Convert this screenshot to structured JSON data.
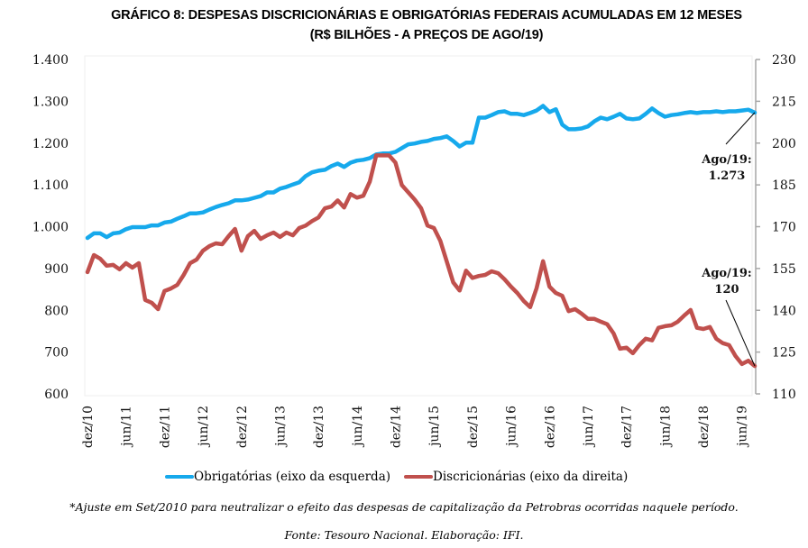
{
  "header": {
    "title_line1": "GRÁFICO 8: DESPESAS DISCRICIONÁRIAS E OBRIGATÓRIAS FEDERAIS ACUMULADAS EM 12 MESES",
    "title_line2": "(R$ BILHÕES - A PREÇOS DE AGO/19)"
  },
  "footer": {
    "note": "*Ajuste em Set/2010 para neutralizar o efeito das despesas de capitalização da Petrobras ocorridas naquele período.",
    "source": "Fonte: Tesouro Nacional. Elaboração: IFI."
  },
  "chart_data": {
    "type": "line",
    "title": "GRÁFICO 8: DESPESAS DISCRICIONÁRIAS E OBRIGATÓRIAS FEDERAIS ACUMULADAS EM 12 MESES (R$ BILHÕES - A PREÇOS DE AGO/19)",
    "x_start": "dez/10",
    "x_end": "ago/19",
    "x_tick_labels": [
      "dez/10",
      "jun/11",
      "dez/11",
      "jun/12",
      "dez/12",
      "jun/13",
      "dez/13",
      "jun/14",
      "dez/14",
      "jun/15",
      "dez/15",
      "jun/16",
      "dez/16",
      "jun/17",
      "dez/17",
      "jun/18",
      "dez/18",
      "jun/19"
    ],
    "x_tick_month_index": [
      0,
      6,
      12,
      18,
      24,
      30,
      36,
      42,
      48,
      54,
      60,
      66,
      72,
      78,
      84,
      90,
      96,
      102
    ],
    "grid": false,
    "legend_position": "bottom",
    "y_left": {
      "label": "",
      "ylim": [
        600,
        1400
      ],
      "ticks": [
        600,
        700,
        800,
        900,
        1000,
        1100,
        1200,
        1300,
        1400
      ],
      "tick_labels": [
        "600",
        "700",
        "800",
        "900",
        "1.000",
        "1.100",
        "1.200",
        "1.300",
        "1.400"
      ]
    },
    "y_right": {
      "label": "",
      "ylim": [
        110,
        230
      ],
      "ticks": [
        110,
        125,
        140,
        155,
        170,
        185,
        200,
        215,
        230
      ],
      "tick_labels": [
        "110",
        "125",
        "140",
        "155",
        "170",
        "185",
        "200",
        "215",
        "230"
      ]
    },
    "series": [
      {
        "name": "Obrigatórias (eixo da esquerda)",
        "axis": "left",
        "color": "#16a9ec",
        "values": [
          973,
          984,
          984,
          975,
          984,
          986,
          994,
          999,
          999,
          999,
          1003,
          1003,
          1010,
          1012,
          1019,
          1025,
          1032,
          1032,
          1034,
          1041,
          1047,
          1052,
          1056,
          1063,
          1063,
          1065,
          1069,
          1073,
          1082,
          1082,
          1091,
          1095,
          1101,
          1106,
          1121,
          1130,
          1134,
          1136,
          1145,
          1151,
          1143,
          1153,
          1158,
          1160,
          1164,
          1173,
          1175,
          1175,
          1179,
          1188,
          1197,
          1199,
          1203,
          1205,
          1210,
          1212,
          1216,
          1205,
          1192,
          1201,
          1201,
          1261,
          1261,
          1267,
          1274,
          1276,
          1270,
          1270,
          1267,
          1272,
          1278,
          1289,
          1274,
          1281,
          1244,
          1233,
          1233,
          1235,
          1240,
          1252,
          1261,
          1257,
          1263,
          1270,
          1259,
          1257,
          1259,
          1270,
          1283,
          1272,
          1263,
          1267,
          1269,
          1272,
          1274,
          1272,
          1274,
          1274,
          1276,
          1274,
          1276,
          1276,
          1278,
          1280,
          1273
        ]
      },
      {
        "name": "Discricionárias (eixo da direita)",
        "axis": "right",
        "color": "#c0504d",
        "values": [
          153.7,
          159.8,
          158.5,
          156.0,
          156.3,
          154.7,
          156.9,
          155.3,
          156.9,
          143.7,
          142.7,
          140.4,
          146.9,
          147.8,
          149.1,
          152.7,
          156.9,
          158.2,
          161.4,
          163.0,
          164.0,
          163.7,
          166.6,
          169.2,
          161.4,
          166.6,
          168.5,
          165.6,
          166.9,
          167.9,
          166.3,
          167.9,
          166.9,
          169.5,
          170.4,
          172.0,
          173.3,
          176.6,
          177.2,
          179.4,
          176.9,
          181.7,
          180.4,
          181.1,
          186.2,
          195.6,
          195.6,
          195.6,
          193.0,
          184.9,
          182.3,
          179.7,
          176.6,
          170.4,
          169.5,
          164.9,
          157.5,
          150.0,
          147.1,
          154.2,
          151.6,
          152.3,
          152.7,
          154.0,
          153.3,
          151.1,
          148.5,
          146.2,
          143.3,
          141.1,
          147.9,
          157.6,
          148.5,
          146.2,
          145.2,
          139.7,
          140.4,
          138.8,
          136.9,
          136.9,
          135.9,
          135.0,
          131.7,
          126.2,
          126.6,
          124.6,
          127.5,
          129.8,
          129.2,
          133.7,
          134.3,
          134.6,
          135.9,
          138.1,
          140.1,
          133.7,
          133.3,
          134.0,
          129.8,
          128.2,
          127.5,
          123.6,
          120.7,
          121.9,
          120.0
        ]
      }
    ],
    "annotations": [
      {
        "series": "Obrigatórias (eixo da esquerda)",
        "label_line1": "Ago/19:",
        "label_line2": "1.273",
        "value": 1273
      },
      {
        "series": "Discricionárias (eixo da direita)",
        "label_line1": "Ago/19:",
        "label_line2": "120",
        "value": 120
      }
    ]
  }
}
